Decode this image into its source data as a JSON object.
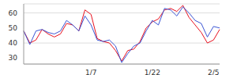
{
  "chart_data": {
    "type": "line",
    "categories": [
      null,
      null,
      null,
      null,
      null,
      null,
      null,
      null,
      null,
      null,
      null,
      "1/7",
      null,
      null,
      null,
      null,
      null,
      null,
      null,
      null,
      null,
      "1/22",
      null,
      null,
      null,
      null,
      null,
      null,
      null,
      null,
      null,
      "2/5",
      null
    ],
    "series": [
      {
        "color": "#e8111f",
        "values": [
          48,
          40,
          42,
          49,
          46,
          44,
          46,
          53,
          52,
          48,
          62,
          59,
          43,
          41,
          40,
          35,
          28,
          35,
          36,
          41,
          50,
          54,
          56,
          62,
          63,
          61,
          65,
          57,
          52,
          47,
          40,
          42,
          49
        ]
      },
      {
        "color": "#3b55d4",
        "values": [
          48,
          39,
          48,
          49,
          47,
          46,
          48,
          55,
          52,
          48,
          58,
          52,
          42,
          41,
          42,
          38,
          27,
          33,
          38,
          40,
          48,
          55,
          52,
          63,
          62,
          58,
          64,
          60,
          55,
          53,
          44,
          51,
          50
        ]
      }
    ],
    "ylim": [
      26,
      66
    ],
    "yticks": [
      30,
      40,
      50,
      60
    ],
    "grid": true
  }
}
